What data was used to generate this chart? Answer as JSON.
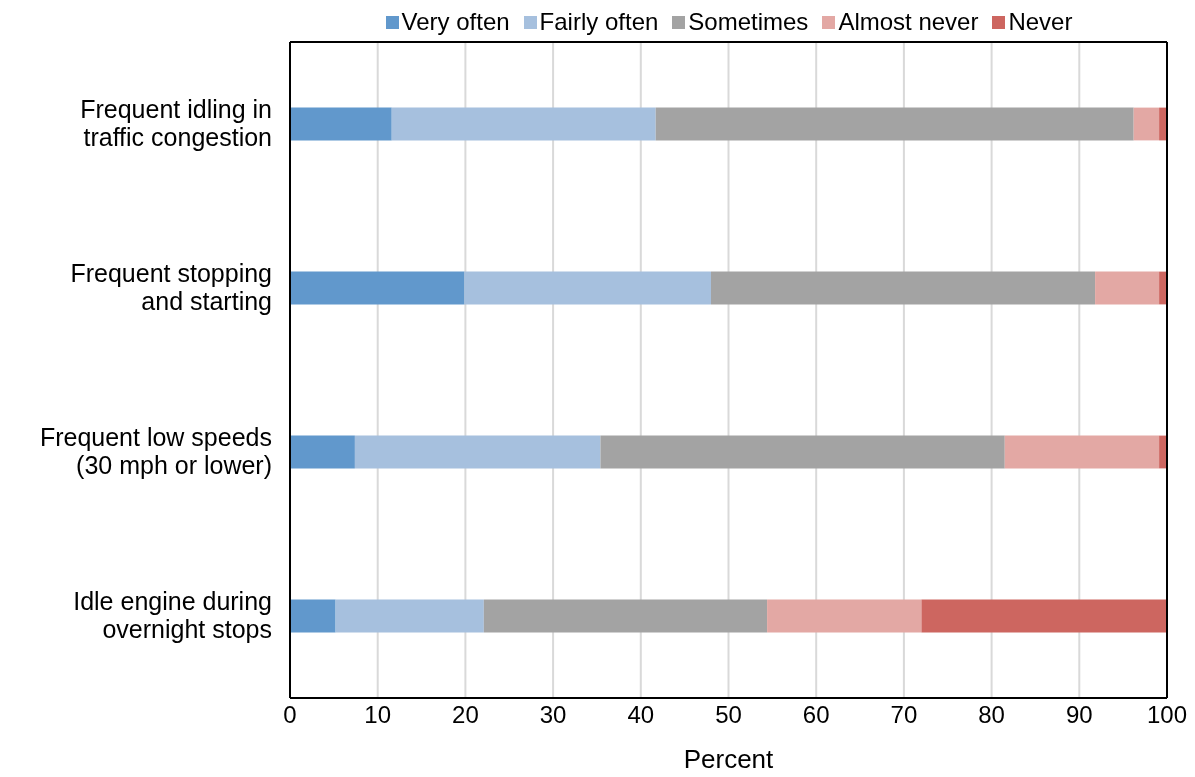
{
  "chart_data": {
    "type": "bar",
    "orientation": "horizontal",
    "stacked": true,
    "categories": [
      "Frequent idling in traffic congestion",
      "Frequent stopping and starting",
      "Frequent low speeds (30 mph or lower)",
      "Idle engine during overnight stops"
    ],
    "series": [
      {
        "name": "Very often",
        "color": "#6198cc",
        "values": [
          11.6,
          19.9,
          7.4,
          5.2
        ]
      },
      {
        "name": "Fairly often",
        "color": "#a6c0de",
        "values": [
          30.1,
          28.1,
          28.0,
          16.9
        ]
      },
      {
        "name": "Sometimes",
        "color": "#a3a3a3",
        "values": [
          54.5,
          43.8,
          46.1,
          32.3
        ]
      },
      {
        "name": "Almost never",
        "color": "#e3a8a4",
        "values": [
          2.9,
          7.3,
          17.6,
          17.6
        ]
      },
      {
        "name": "Never",
        "color": "#cd6660",
        "values": [
          0.9,
          0.9,
          0.9,
          28.0
        ]
      }
    ],
    "xlabel": "Percent",
    "xlim": [
      0,
      100
    ],
    "xticks": [
      0,
      10,
      20,
      30,
      40,
      50,
      60,
      70,
      80,
      90,
      100
    ],
    "grid": "x",
    "legend": "top"
  }
}
